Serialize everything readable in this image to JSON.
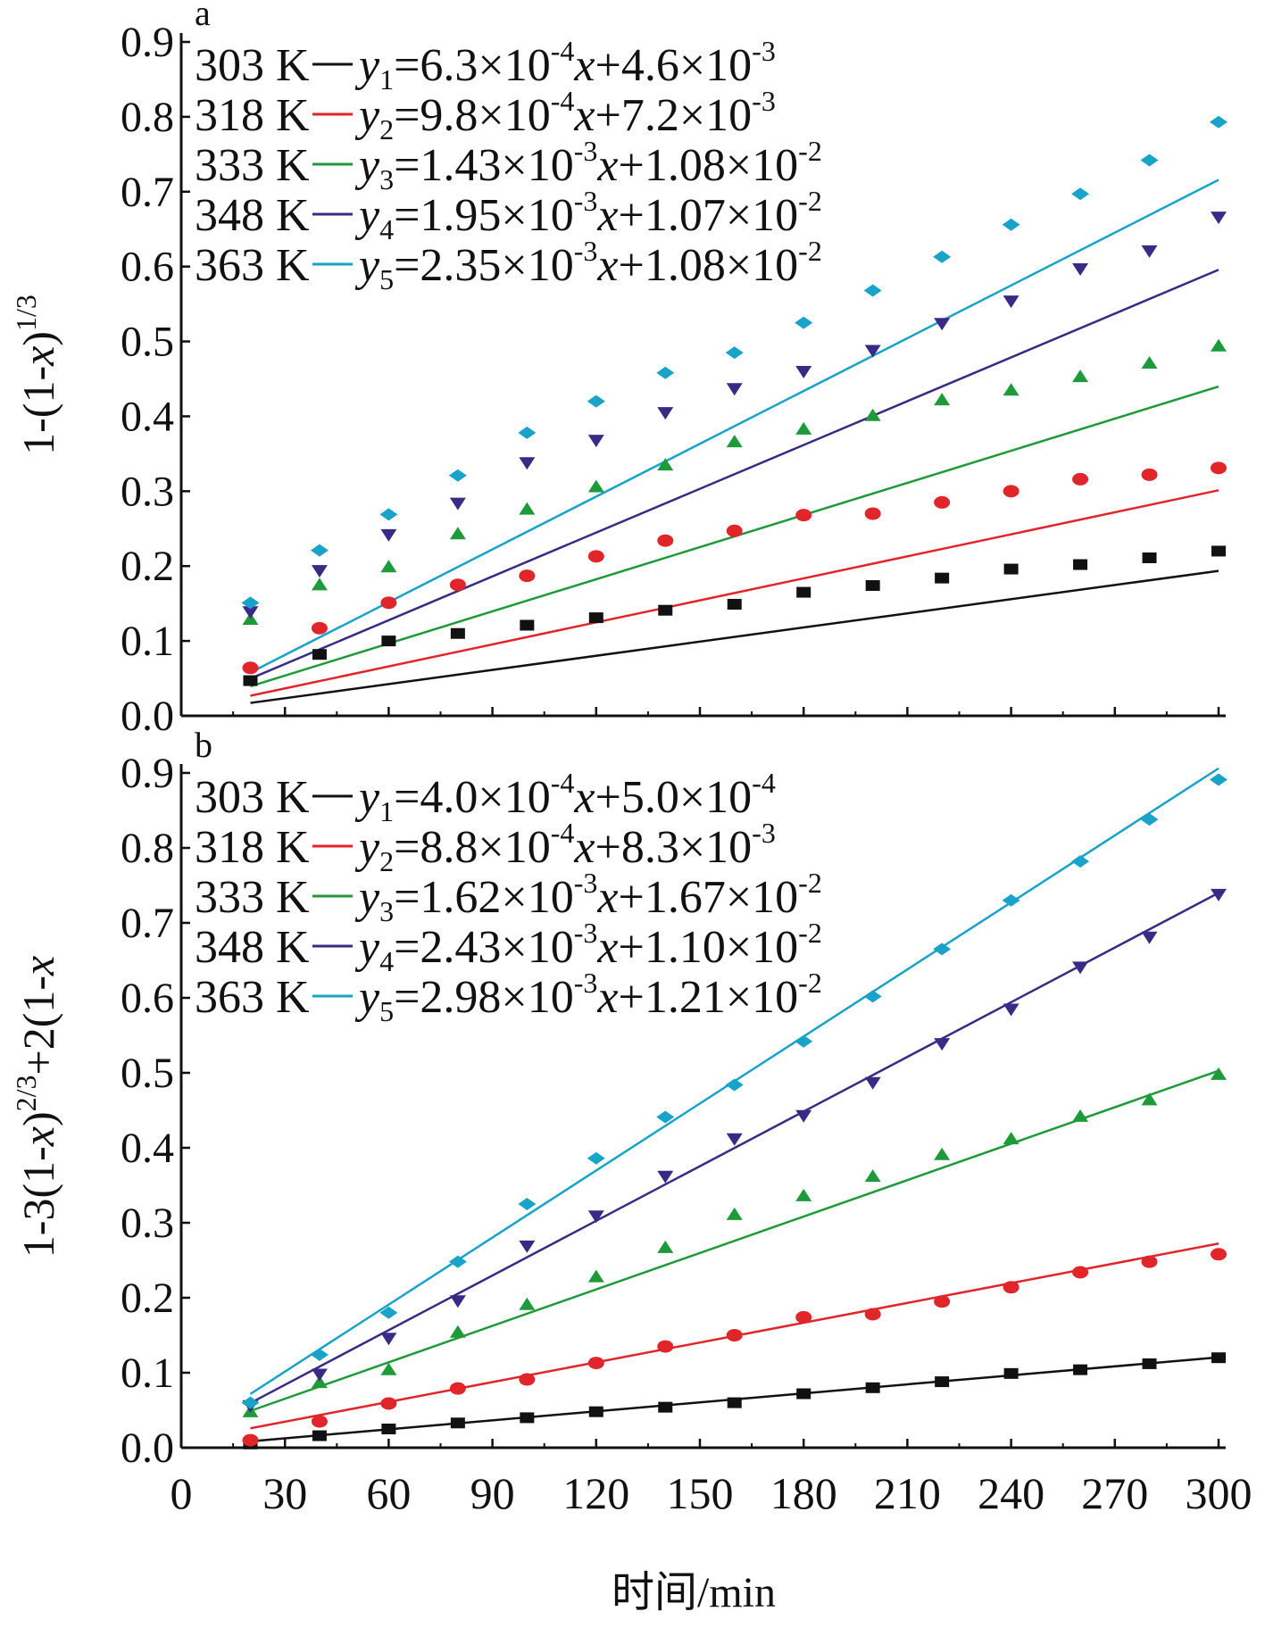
{
  "xlabel": "时间/min",
  "x_ticks": [
    0,
    30,
    60,
    90,
    120,
    150,
    180,
    210,
    240,
    270,
    300
  ],
  "colors": {
    "303 K": "#111111",
    "318 K": "#e0252b",
    "333 K": "#1e9a3a",
    "348 K": "#3a2a86",
    "363 K": "#1aa3c8"
  },
  "chart_data": [
    {
      "type": "scatter",
      "panel_label": "a",
      "ylabel": {
        "base": "1-(1-",
        "var": "x",
        "close": ")",
        "sup": "1/3"
      },
      "xlim": [
        0,
        300
      ],
      "ylim": [
        0.0,
        0.9
      ],
      "y_ticks": [
        "0.0",
        "0.1",
        "0.2",
        "0.3",
        "0.4",
        "0.5",
        "0.6",
        "0.7",
        "0.8",
        "0.9"
      ],
      "x": [
        20,
        40,
        60,
        80,
        100,
        120,
        140,
        160,
        180,
        200,
        220,
        240,
        260,
        280,
        300
      ],
      "series": [
        {
          "name": "303 K",
          "marker": "square",
          "color": "#111111",
          "fit": {
            "yvar": "y",
            "sub": "1",
            "rhs": "=6.3×10",
            "exp1": "-4",
            "mid": "x+4.6×10",
            "exp2": "-3",
            "slope": 0.00063,
            "intercept": 0.0046
          },
          "values": [
            0.047,
            0.082,
            0.1,
            0.11,
            0.121,
            0.131,
            0.141,
            0.149,
            0.165,
            0.174,
            0.184,
            0.196,
            0.202,
            0.211,
            0.22
          ]
        },
        {
          "name": "318 K",
          "marker": "circle",
          "color": "#e0252b",
          "fit": {
            "yvar": "y",
            "sub": "2",
            "rhs": "=9.8×10",
            "exp1": "-4",
            "mid": "x+7.2×10",
            "exp2": "-3",
            "slope": 0.00098,
            "intercept": 0.0072
          },
          "values": [
            0.064,
            0.117,
            0.151,
            0.175,
            0.187,
            0.213,
            0.234,
            0.247,
            0.268,
            0.27,
            0.285,
            0.3,
            0.316,
            0.322,
            0.331
          ]
        },
        {
          "name": "333 K",
          "marker": "triangle-up",
          "color": "#1e9a3a",
          "fit": {
            "yvar": "y",
            "sub": "3",
            "rhs": "=1.43×10",
            "exp1": "-3",
            "mid": "x+1.08×10",
            "exp2": "-2",
            "slope": 0.00143,
            "intercept": 0.0108
          },
          "values": [
            0.13,
            0.176,
            0.2,
            0.244,
            0.277,
            0.307,
            0.336,
            0.367,
            0.384,
            0.402,
            0.423,
            0.436,
            0.454,
            0.472,
            0.495
          ]
        },
        {
          "name": "348 K",
          "marker": "triangle-down",
          "color": "#3a2a86",
          "fit": {
            "yvar": "y",
            "sub": "4",
            "rhs": "=1.95×10",
            "exp1": "-3",
            "mid": "x+1.07×10",
            "exp2": "-2",
            "slope": 0.00195,
            "intercept": 0.0107
          },
          "values": [
            0.138,
            0.193,
            0.241,
            0.283,
            0.337,
            0.367,
            0.404,
            0.436,
            0.459,
            0.487,
            0.523,
            0.553,
            0.596,
            0.62,
            0.665
          ]
        },
        {
          "name": "363 K",
          "marker": "diamond",
          "color": "#1aa3c8",
          "fit": {
            "yvar": "y",
            "sub": "5",
            "rhs": "=2.35×10",
            "exp1": "-3",
            "mid": "x+1.08×10",
            "exp2": "-2",
            "slope": 0.00235,
            "intercept": 0.0108
          },
          "values": [
            0.151,
            0.221,
            0.269,
            0.321,
            0.378,
            0.42,
            0.458,
            0.485,
            0.525,
            0.568,
            0.613,
            0.656,
            0.697,
            0.742,
            0.793
          ]
        }
      ]
    },
    {
      "type": "scatter",
      "panel_label": "b",
      "ylabel": {
        "base": "1-3(1-",
        "var": "x",
        "close": ")",
        "sup": "2/3",
        "tail": "+2(1-",
        "var2": "x"
      },
      "xlim": [
        0,
        300
      ],
      "ylim": [
        0.0,
        0.9
      ],
      "y_ticks": [
        "0.0",
        "0.1",
        "0.2",
        "0.3",
        "0.4",
        "0.5",
        "0.6",
        "0.7",
        "0.8",
        "0.9"
      ],
      "x": [
        20,
        40,
        60,
        80,
        100,
        120,
        140,
        160,
        180,
        200,
        220,
        240,
        260,
        280,
        300
      ],
      "series": [
        {
          "name": "303 K",
          "marker": "square",
          "color": "#111111",
          "fit": {
            "yvar": "y",
            "sub": "1",
            "rhs": "=4.0×10",
            "exp1": "-4",
            "mid": "x+5.0×10",
            "exp2": "-4",
            "slope": 0.0004,
            "intercept": 0.0005
          },
          "values": [
            0.005,
            0.016,
            0.025,
            0.033,
            0.04,
            0.048,
            0.054,
            0.06,
            0.072,
            0.08,
            0.088,
            0.099,
            0.104,
            0.112,
            0.12
          ]
        },
        {
          "name": "318 K",
          "marker": "circle",
          "color": "#e0252b",
          "fit": {
            "yvar": "y",
            "sub": "2",
            "rhs": "=8.8×10",
            "exp1": "-4",
            "mid": "x+8.3×10",
            "exp2": "-3",
            "slope": 0.00088,
            "intercept": 0.0083
          },
          "values": [
            0.01,
            0.035,
            0.059,
            0.079,
            0.091,
            0.113,
            0.135,
            0.15,
            0.174,
            0.178,
            0.195,
            0.214,
            0.234,
            0.248,
            0.258
          ]
        },
        {
          "name": "333 K",
          "marker": "triangle-up",
          "color": "#1e9a3a",
          "fit": {
            "yvar": "y",
            "sub": "3",
            "rhs": "=1.62×10",
            "exp1": "-3",
            "mid": "x+1.67×10",
            "exp2": "-2",
            "slope": 0.00162,
            "intercept": 0.0167
          },
          "values": [
            0.049,
            0.088,
            0.105,
            0.155,
            0.192,
            0.229,
            0.268,
            0.312,
            0.337,
            0.363,
            0.392,
            0.413,
            0.443,
            0.465,
            0.499
          ]
        },
        {
          "name": "348 K",
          "marker": "triangle-down",
          "color": "#3a2a86",
          "fit": {
            "yvar": "y",
            "sub": "4",
            "rhs": "=2.43×10",
            "exp1": "-3",
            "mid": "x+1.10×10",
            "exp2": "-2",
            "slope": 0.00243,
            "intercept": 0.011
          },
          "values": [
            0.055,
            0.097,
            0.145,
            0.195,
            0.268,
            0.308,
            0.361,
            0.411,
            0.442,
            0.486,
            0.538,
            0.584,
            0.64,
            0.68,
            0.737
          ]
        },
        {
          "name": "363 K",
          "marker": "diamond",
          "color": "#1aa3c8",
          "fit": {
            "yvar": "y",
            "sub": "5",
            "rhs": "=2.98×10",
            "exp1": "-3",
            "mid": "x+1.21×10",
            "exp2": "-2",
            "slope": 0.00298,
            "intercept": 0.0121
          },
          "values": [
            0.06,
            0.124,
            0.18,
            0.248,
            0.325,
            0.386,
            0.441,
            0.484,
            0.542,
            0.602,
            0.665,
            0.73,
            0.782,
            0.838,
            0.891
          ]
        }
      ]
    }
  ]
}
